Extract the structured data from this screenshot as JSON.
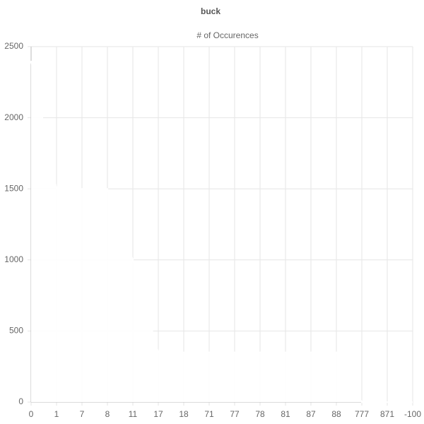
{
  "chart_data": {
    "type": "line",
    "title": "buck",
    "categories": [
      "0",
      "1",
      "7",
      "8",
      "11",
      "17",
      "18",
      "71",
      "77",
      "78",
      "81",
      "87",
      "88",
      "777",
      "871",
      "-100"
    ],
    "series": [
      {
        "name": "# of Occurences",
        "color": "#ffffff",
        "values": [
          2400,
          1500,
          1500,
          1500,
          1000,
          350,
          350,
          350,
          350,
          350,
          350,
          350,
          350,
          0,
          0,
          0
        ]
      }
    ],
    "fill": true,
    "ylim": [
      0,
      2500
    ],
    "yticks": [
      0,
      500,
      1000,
      1500,
      2000,
      2500
    ],
    "grid": true,
    "legend": "top"
  }
}
